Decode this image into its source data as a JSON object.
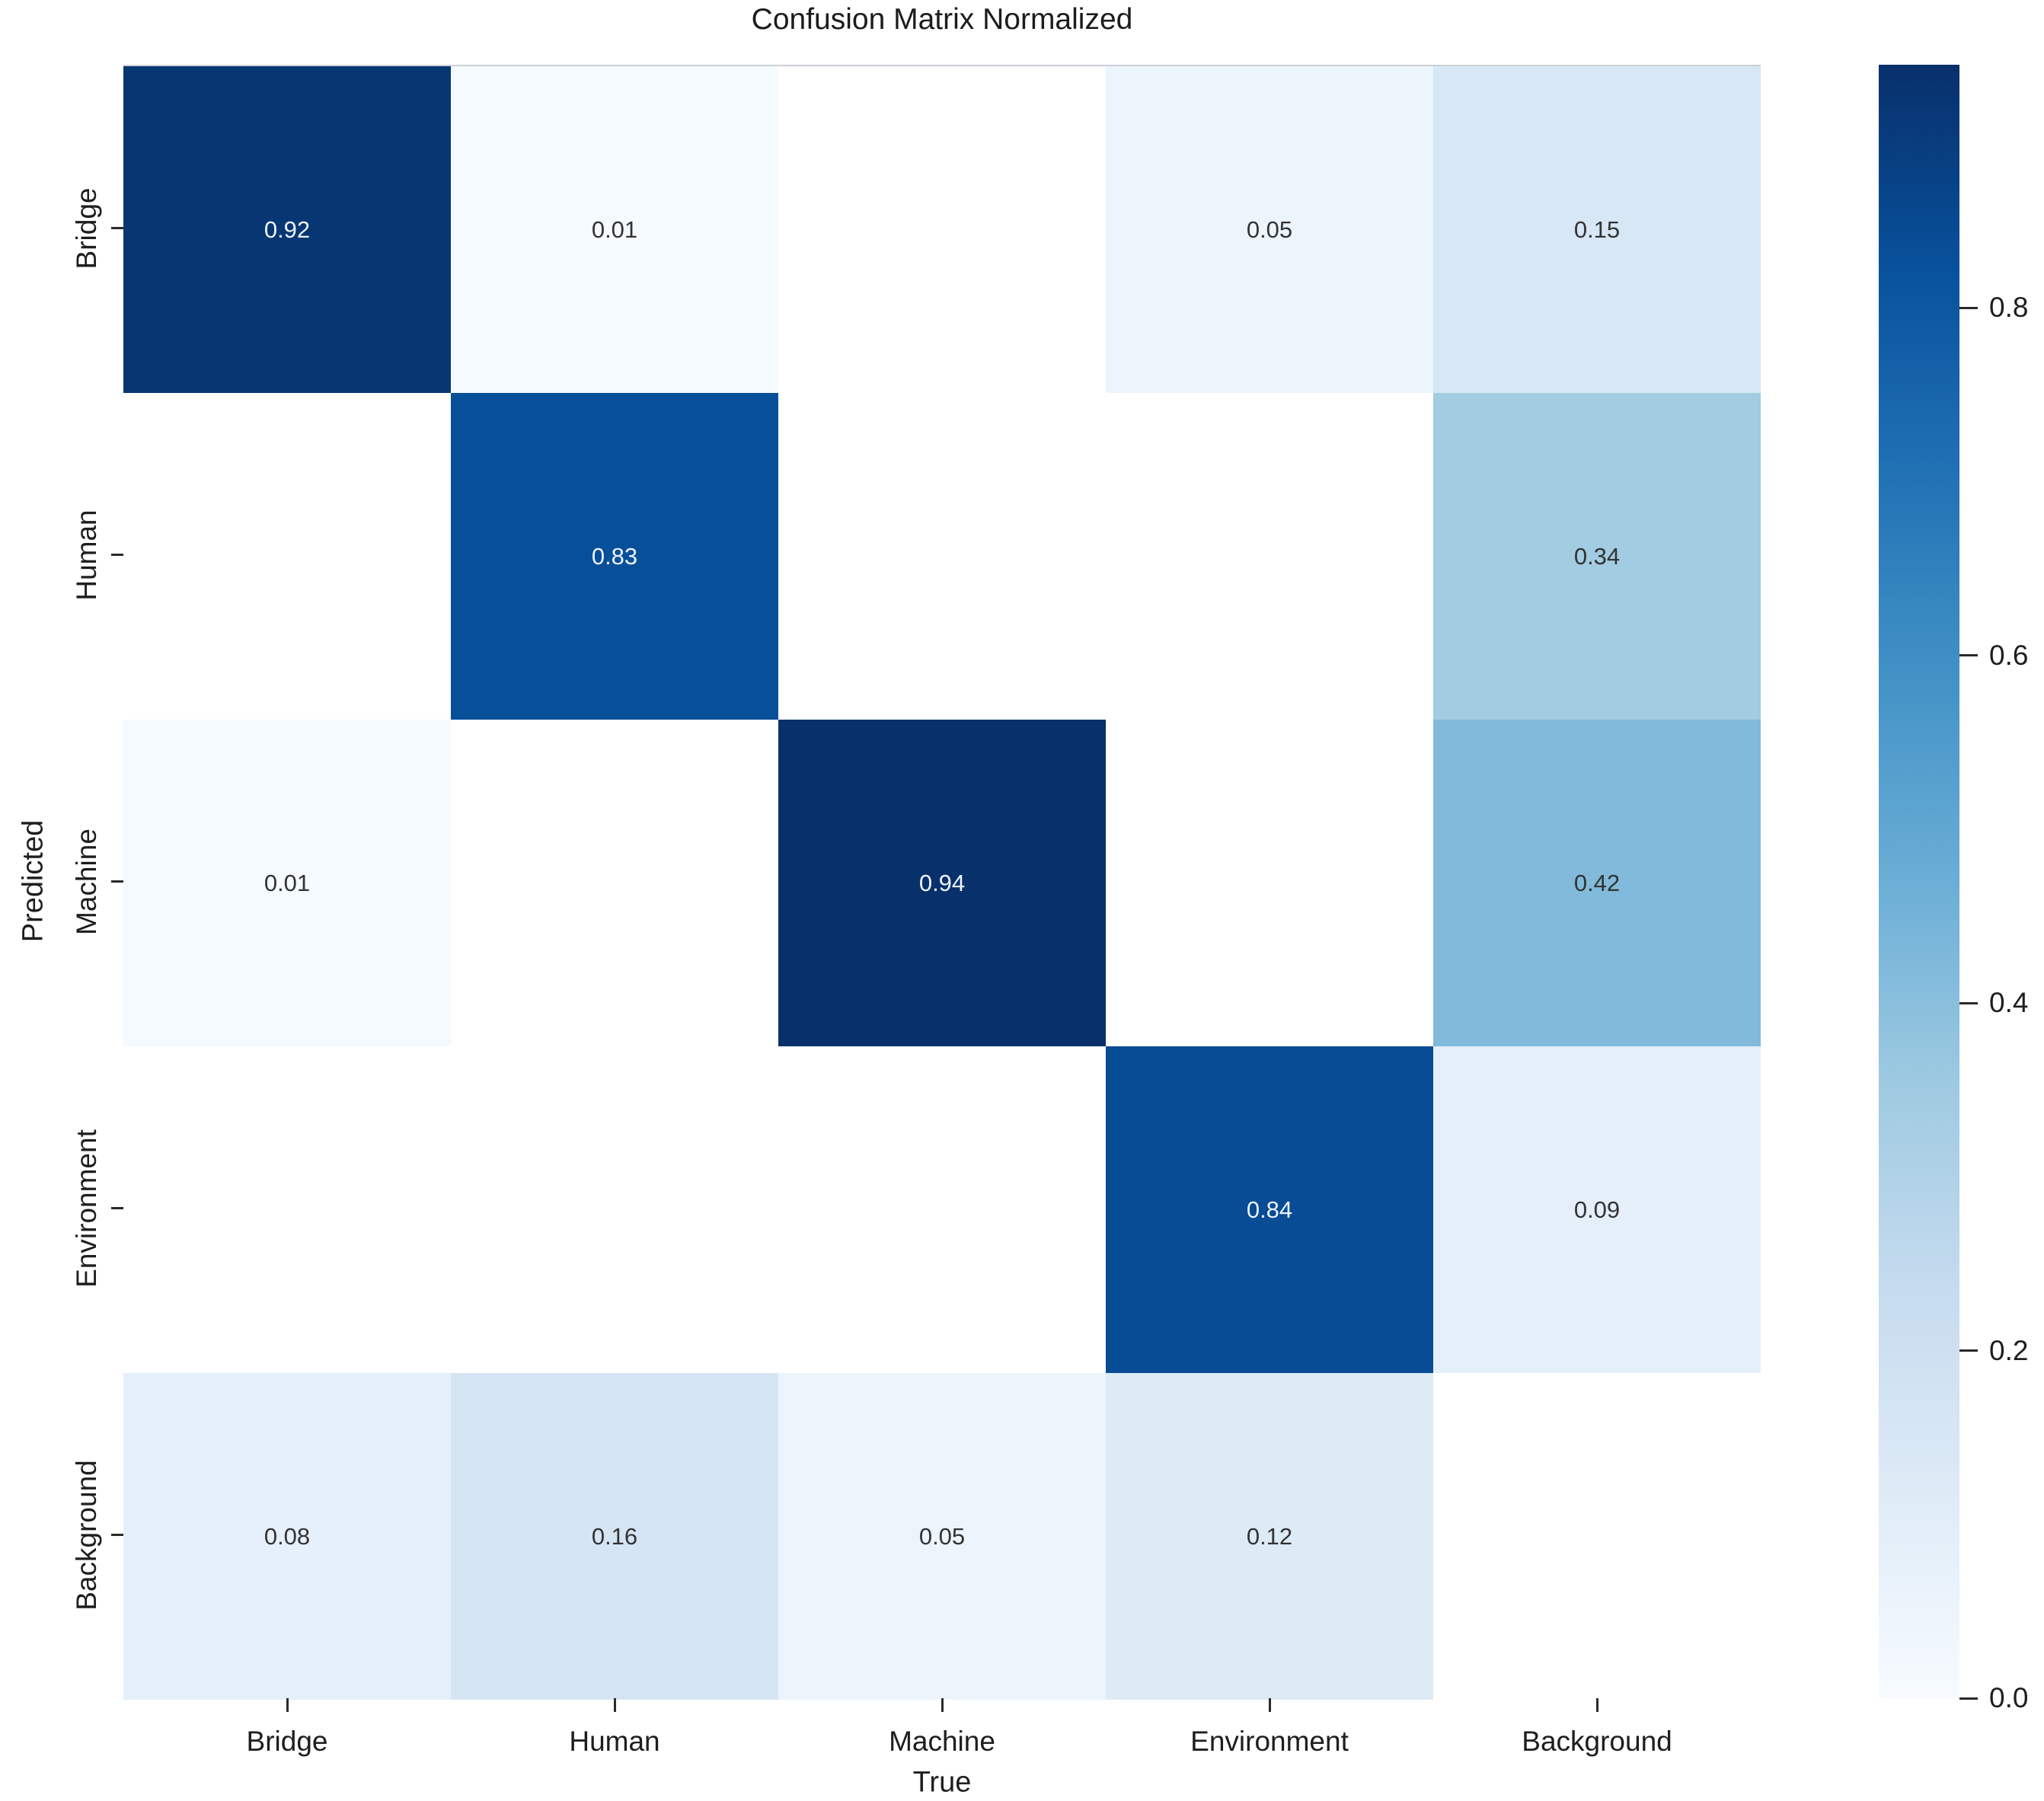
{
  "title": "Confusion Matrix Normalized",
  "chart_data": {
    "type": "heatmap",
    "title": "Confusion Matrix Normalized",
    "xlabel": "True",
    "ylabel": "Predicted",
    "x_categories": [
      "Bridge",
      "Human",
      "Machine",
      "Environment",
      "Background"
    ],
    "y_categories": [
      "Bridge",
      "Human",
      "Machine",
      "Environment",
      "Background"
    ],
    "matrix": [
      [
        0.92,
        0.01,
        null,
        0.05,
        0.15
      ],
      [
        null,
        0.83,
        null,
        null,
        0.34
      ],
      [
        0.01,
        null,
        0.94,
        null,
        0.42
      ],
      [
        null,
        null,
        null,
        0.84,
        0.09
      ],
      [
        0.08,
        0.16,
        0.05,
        0.12,
        null
      ]
    ],
    "value_decimals": 2,
    "vmin": 0.0,
    "vmax": 0.94,
    "colormap": "Blues",
    "colormap_stops": [
      {
        "pos": 0.0,
        "color": "#f7fbff"
      },
      {
        "pos": 0.125,
        "color": "#deebf7"
      },
      {
        "pos": 0.25,
        "color": "#c6dbef"
      },
      {
        "pos": 0.375,
        "color": "#9ecae1"
      },
      {
        "pos": 0.5,
        "color": "#6baed6"
      },
      {
        "pos": 0.625,
        "color": "#4292c6"
      },
      {
        "pos": 0.75,
        "color": "#2171b5"
      },
      {
        "pos": 0.875,
        "color": "#08519c"
      },
      {
        "pos": 1.0,
        "color": "#08306b"
      }
    ],
    "masked_cell_color": "#ffffff",
    "annotation_color_on_light": "#333333",
    "annotation_color_on_dark": "#edf3fa",
    "text_color": "#1e1e1e",
    "grid": false,
    "colorbar": {
      "position": "right",
      "ticks": [
        {
          "value": 0.8,
          "label": "0.8"
        },
        {
          "value": 0.6,
          "label": "0.6"
        },
        {
          "value": 0.4,
          "label": "0.4"
        },
        {
          "value": 0.2,
          "label": "0.2"
        },
        {
          "value": 0.0,
          "label": "0.0"
        }
      ]
    }
  }
}
